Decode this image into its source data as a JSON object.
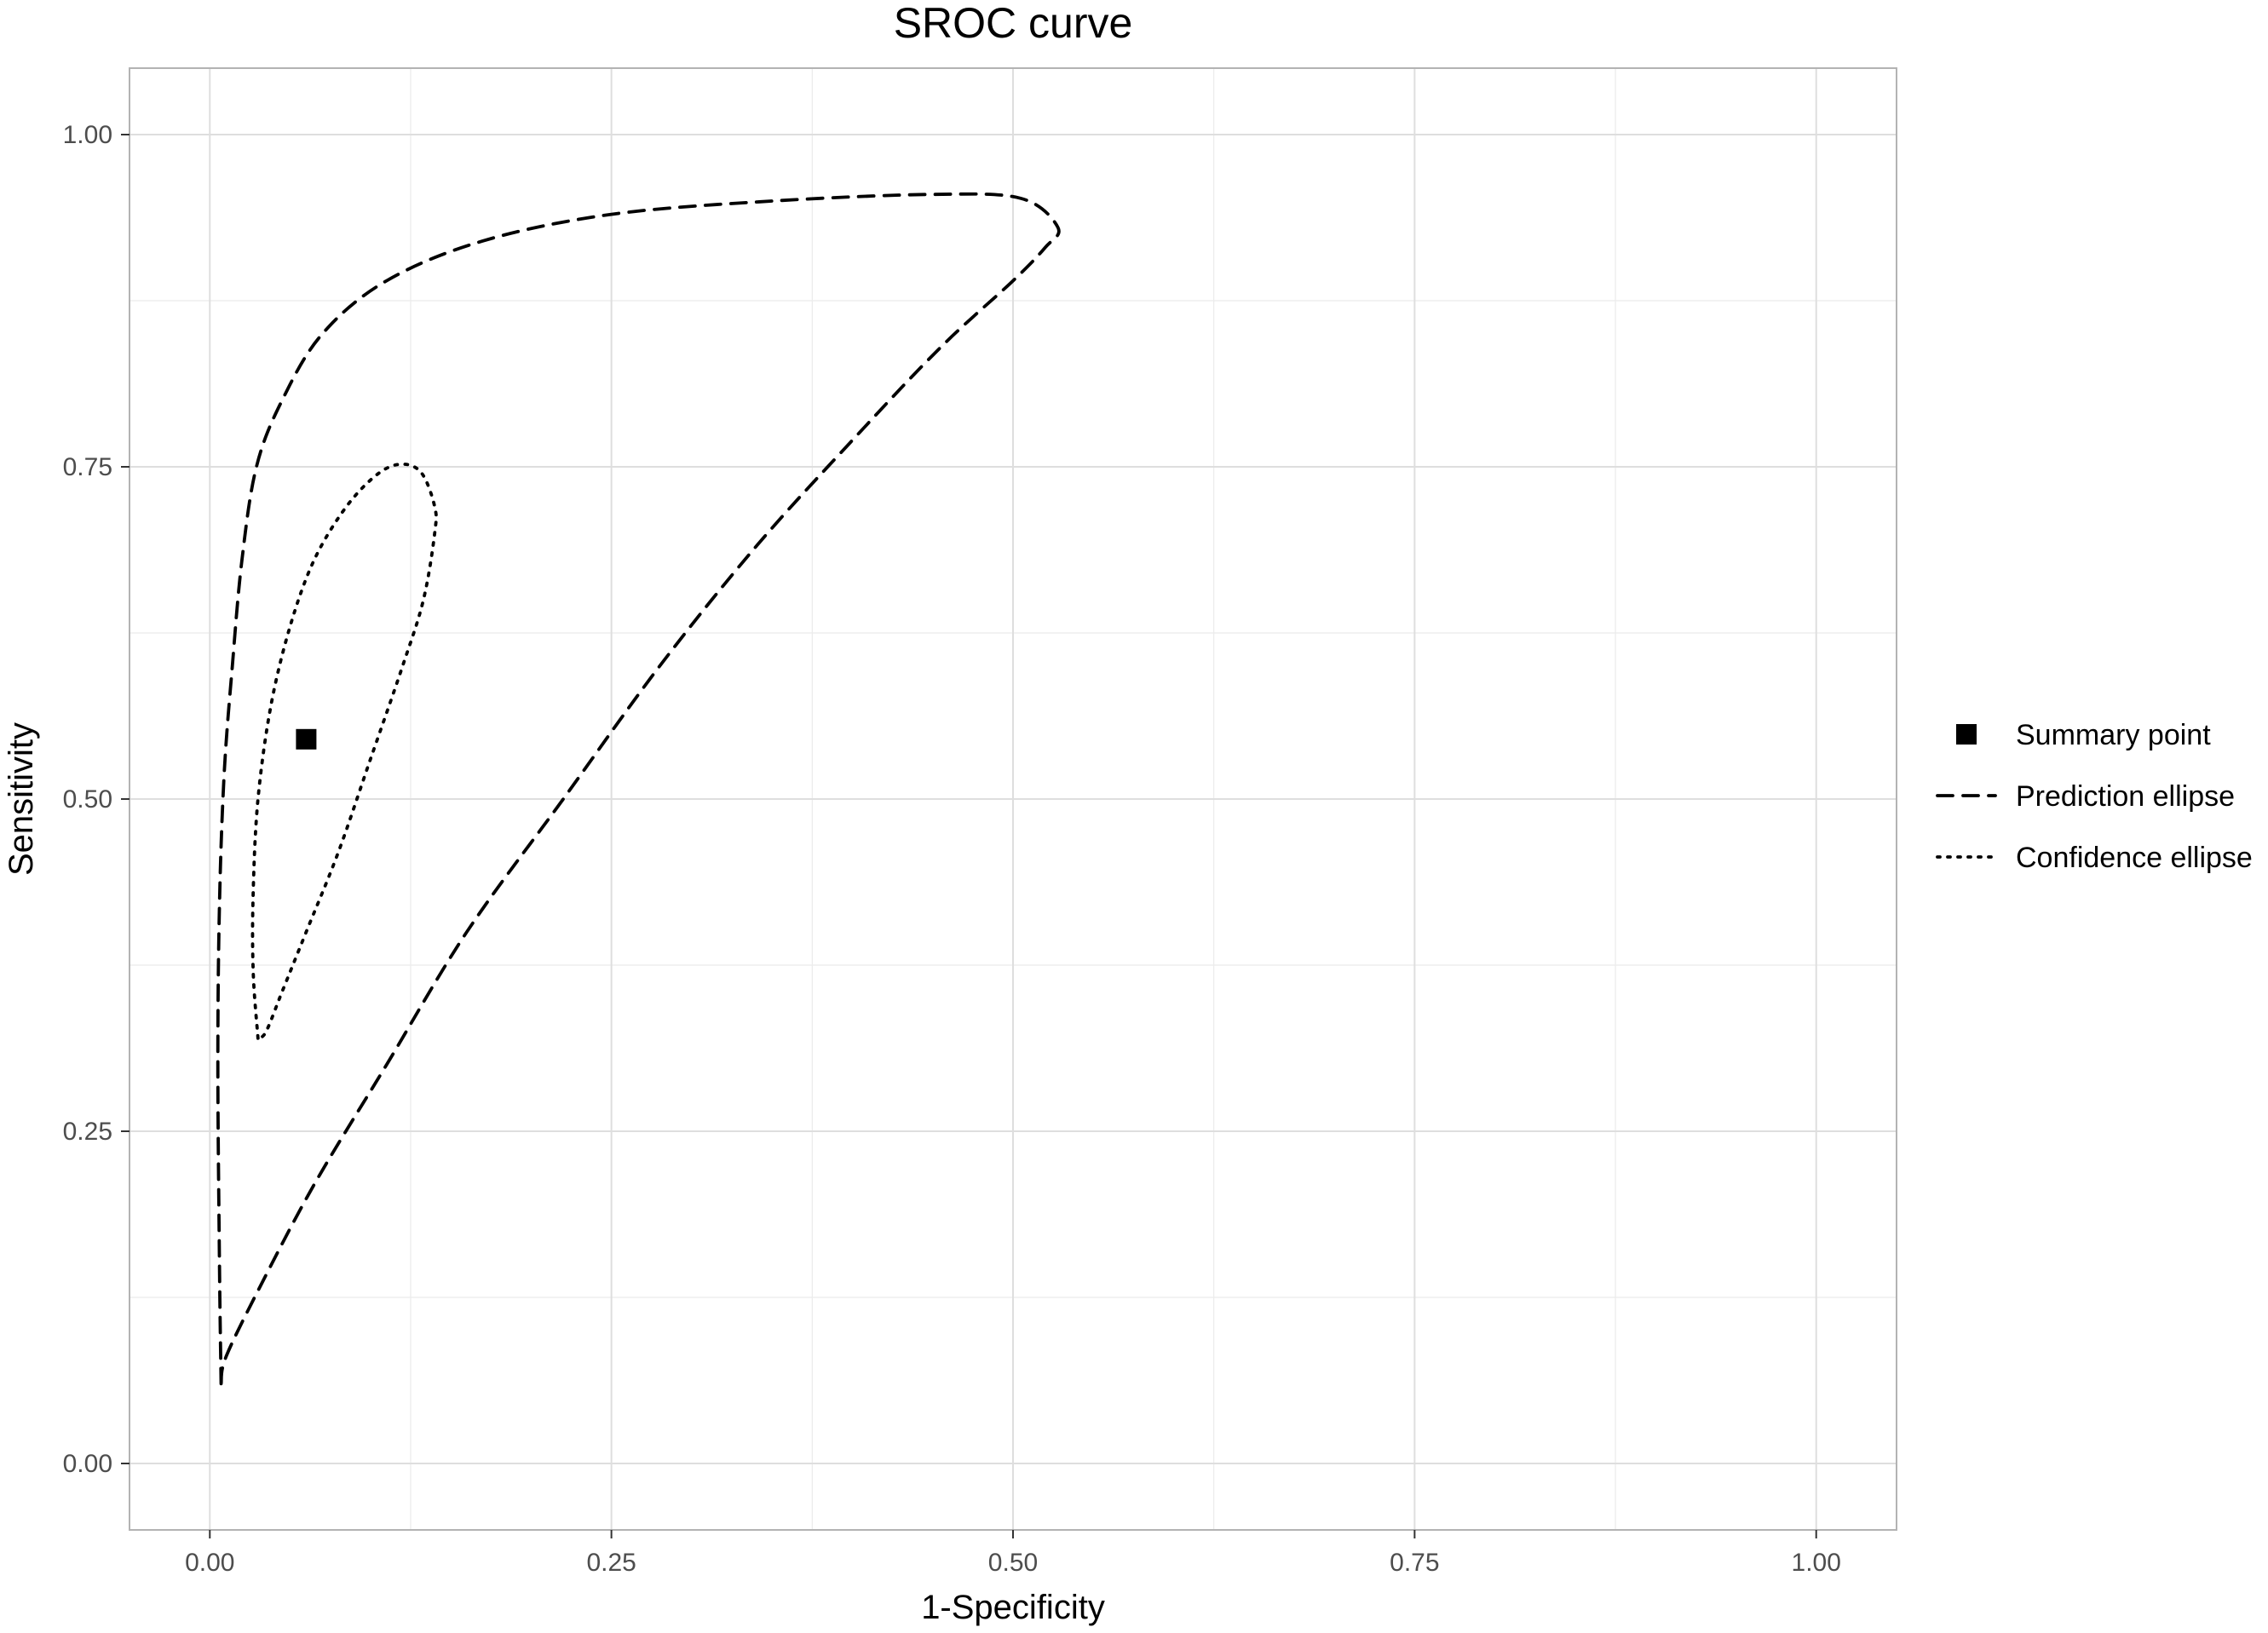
{
  "chart_data": {
    "type": "line",
    "title": "SROC curve",
    "xlabel": "1-Specificity",
    "ylabel": "Sensitivity",
    "xlim": [
      -0.05,
      1.05
    ],
    "ylim": [
      -0.05,
      1.05
    ],
    "x_ticks": [
      0,
      0.25,
      0.5,
      0.75,
      1
    ],
    "x_tick_labels": [
      "0.00",
      "0.25",
      "0.50",
      "0.75",
      "1.00"
    ],
    "y_ticks": [
      0,
      0.25,
      0.5,
      0.75,
      1
    ],
    "y_tick_labels": [
      "0.00",
      "0.25",
      "0.50",
      "0.75",
      "1.00"
    ],
    "grid": true,
    "legend_position": "right",
    "series": [
      {
        "name": "Summary point",
        "kind": "point",
        "marker": "square",
        "color": "#000000",
        "x": [
          0.06
        ],
        "y": [
          0.545
        ]
      },
      {
        "name": "Prediction ellipse",
        "kind": "line",
        "linestyle": "dashed",
        "color": "#000000",
        "x": [
          0.007,
          0.006,
          0.005,
          0.006,
          0.009,
          0.014,
          0.02,
          0.029,
          0.045,
          0.07,
          0.11,
          0.17,
          0.25,
          0.35,
          0.45,
          0.505,
          0.528,
          0.52,
          0.5,
          0.455,
          0.4,
          0.34,
          0.28,
          0.22,
          0.16,
          0.11,
          0.065,
          0.03,
          0.01,
          0.007
        ],
        "y": [
          0.06,
          0.15,
          0.3,
          0.42,
          0.52,
          0.6,
          0.68,
          0.75,
          0.8,
          0.85,
          0.89,
          0.92,
          0.94,
          0.95,
          0.955,
          0.952,
          0.93,
          0.915,
          0.89,
          0.84,
          0.77,
          0.69,
          0.6,
          0.5,
          0.4,
          0.3,
          0.21,
          0.13,
          0.08,
          0.06
        ]
      },
      {
        "name": "Confidence ellipse",
        "kind": "line",
        "linestyle": "dotted",
        "color": "#000000",
        "x": [
          0.03,
          0.027,
          0.027,
          0.03,
          0.038,
          0.05,
          0.065,
          0.085,
          0.105,
          0.12,
          0.132,
          0.14,
          0.14,
          0.133,
          0.12,
          0.1,
          0.08,
          0.06,
          0.045,
          0.035,
          0.03
        ],
        "y": [
          0.32,
          0.37,
          0.43,
          0.5,
          0.57,
          0.63,
          0.68,
          0.72,
          0.745,
          0.752,
          0.745,
          0.72,
          0.7,
          0.65,
          0.6,
          0.53,
          0.46,
          0.4,
          0.355,
          0.325,
          0.32
        ]
      }
    ]
  }
}
